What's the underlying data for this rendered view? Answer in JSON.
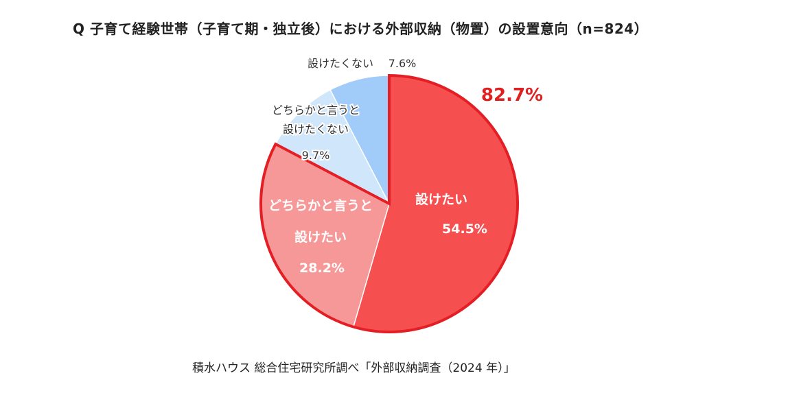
{
  "chart_data": {
    "type": "pie",
    "title": "Q 子育て経験世帯（子育て期・独立後）における外部収納（物置）の設置意向（n=824）",
    "source": "積水ハウス 総合住宅研究所調べ「外部収納調査（2024 年）」",
    "slices": [
      {
        "label_lines": [
          "設けたい"
        ],
        "value": 54.5,
        "value_label": "54.5%",
        "color": "#f5504f"
      },
      {
        "label_lines": [
          "どちらかと言うと",
          "設けたい"
        ],
        "value": 28.2,
        "value_label": "28.2%",
        "color": "#f79898"
      },
      {
        "label_lines": [
          "どちらかと言うと",
          "設けたくない"
        ],
        "value": 9.7,
        "value_label": "9.7%",
        "color": "#cfe6fb"
      },
      {
        "label_lines": [
          "設けたくない"
        ],
        "value": 7.6,
        "value_label": "7.6%",
        "color": "#a1cbf9"
      }
    ],
    "highlight": {
      "text": "82.7%",
      "color": "#e02020",
      "outline_color": "#e31e24",
      "covers_slices": [
        0,
        1
      ]
    }
  }
}
